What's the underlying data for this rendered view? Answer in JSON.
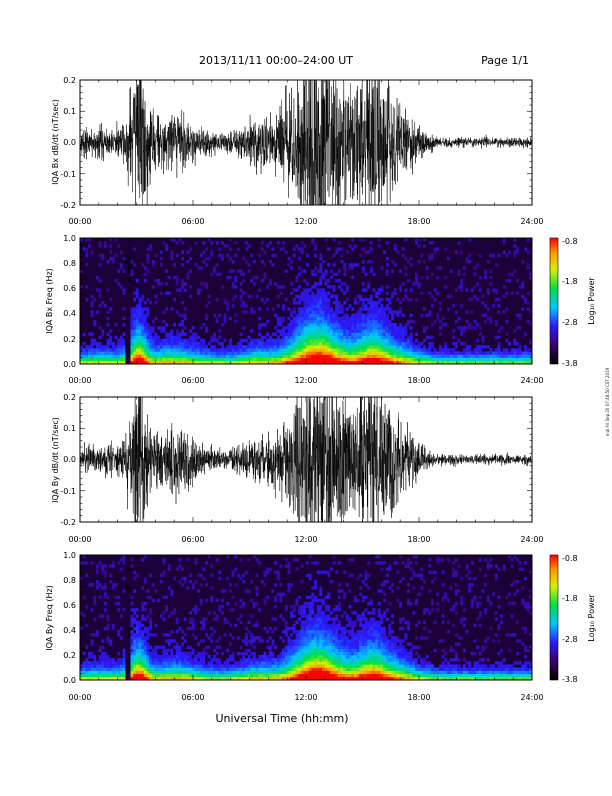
{
  "header": {
    "title": "2013/11/11   00:00–24:00 UT",
    "page": "Page 1/1"
  },
  "x_axis_title": "Universal Time (hh:mm)",
  "side_stamp": "mal Fri Sep 20 07:48:50 CST 2019",
  "colorbar": {
    "label": "Log₁₀ Power",
    "ticks": [
      "-0.8",
      "-1.8",
      "-2.8",
      "-3.8"
    ]
  },
  "chart_data": [
    {
      "type": "line",
      "ylabel": "IQA Bx dB/dt (nT/sec)",
      "x_ticks": [
        "00:00",
        "06:00",
        "12:00",
        "18:00",
        "24:00"
      ],
      "y_ticks": [
        "0.2",
        "0.1",
        "0.0",
        "-0.1",
        "-0.2"
      ],
      "xlim": [
        0,
        24
      ],
      "ylim": [
        -0.2,
        0.2
      ],
      "series": [
        {
          "color": "#000000"
        }
      ]
    },
    {
      "type": "heatmap",
      "ylabel": "IQA Bx Freq (Hz)",
      "x_ticks": [
        "00:00",
        "06:00",
        "12:00",
        "18:00",
        "24:00"
      ],
      "y_ticks": [
        "1.0",
        "0.8",
        "0.6",
        "0.4",
        "0.2",
        "0.0"
      ],
      "xlim": [
        0,
        24
      ],
      "ylim": [
        0,
        1.0
      ],
      "zlim": [
        -3.8,
        -0.8
      ]
    },
    {
      "type": "line",
      "ylabel": "IQA By dB/dt (nT/sec)",
      "x_ticks": [
        "00:00",
        "06:00",
        "12:00",
        "18:00",
        "24:00"
      ],
      "y_ticks": [
        "0.2",
        "0.1",
        "0.0",
        "-0.1",
        "-0.2"
      ],
      "xlim": [
        0,
        24
      ],
      "ylim": [
        -0.2,
        0.2
      ],
      "series": [
        {
          "color": "#000000"
        }
      ]
    },
    {
      "type": "heatmap",
      "ylabel": "IQA By Freq (Hz)",
      "x_ticks": [
        "00:00",
        "06:00",
        "12:00",
        "18:00",
        "24:00"
      ],
      "y_ticks": [
        "1.0",
        "0.8",
        "0.6",
        "0.4",
        "0.2",
        "0.0"
      ],
      "xlim": [
        0,
        24
      ],
      "ylim": [
        0,
        1.0
      ],
      "zlim": [
        -3.8,
        -0.8
      ]
    }
  ]
}
